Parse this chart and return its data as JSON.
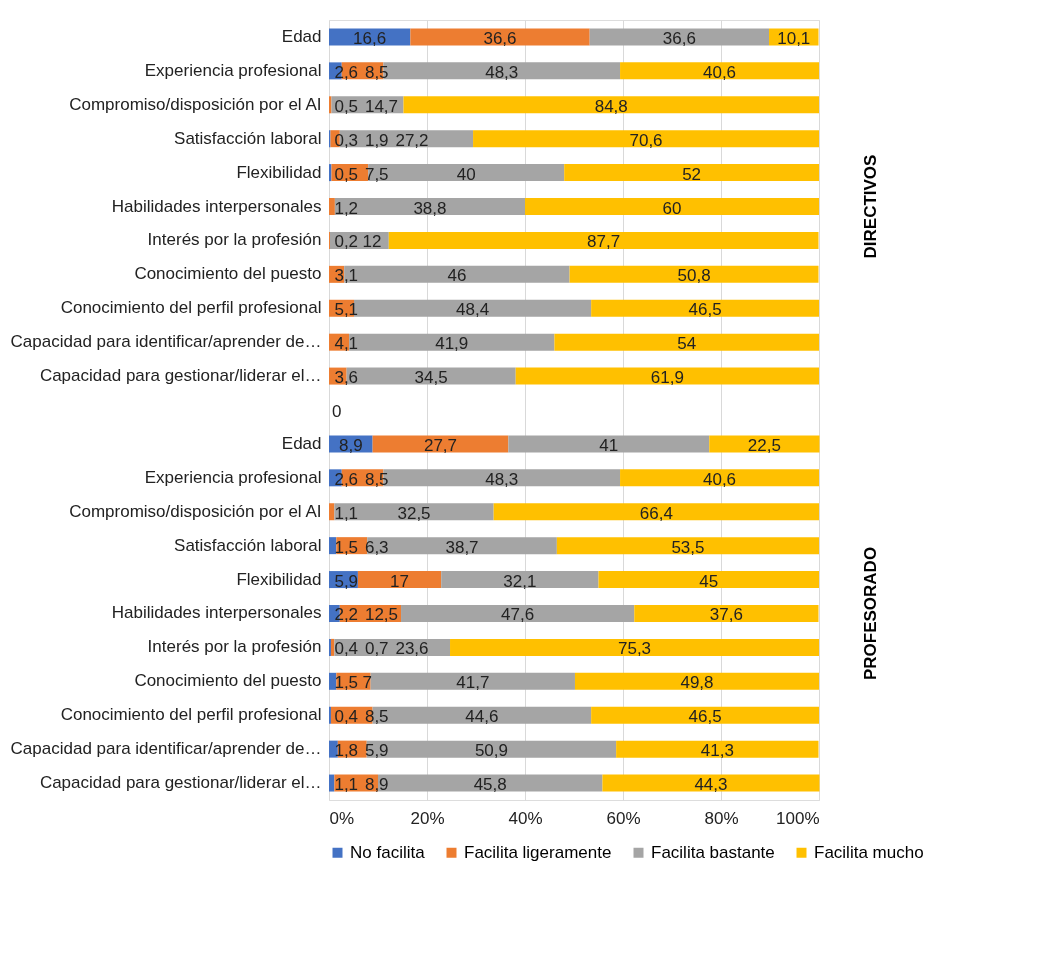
{
  "chart_data": {
    "type": "bar",
    "orientation": "horizontal",
    "stacked": true,
    "categories": [
      "Edad",
      "Experiencia profesional",
      "Compromiso/disposición por el AI",
      "Satisfacción laboral",
      "Flexibilidad",
      "Habilidades interpersonales",
      "Interés por la profesión",
      "Conocimiento del puesto",
      "Conocimiento del perfil profesional",
      "Capacidad para identificar/aprender de…",
      "Capacidad para gestionar/liderar el…",
      null,
      "Edad",
      "Experiencia profesional",
      "Compromiso/disposición por el AI",
      "Satisfacción laboral",
      "Flexibilidad",
      "Habilidades interpersonales",
      "Interés por la profesión",
      "Conocimiento del puesto",
      "Conocimiento del perfil profesional",
      "Capacidad para identificar/aprender de…",
      "Capacidad para gestionar/liderar el…"
    ],
    "series": [
      {
        "name": "No facilita",
        "color": "#4472c4",
        "values": [
          16.6,
          2.6,
          null,
          0.3,
          0.5,
          null,
          null,
          null,
          null,
          null,
          null,
          0,
          8.9,
          2.6,
          null,
          1.5,
          5.9,
          2.2,
          0.4,
          1.5,
          0.4,
          1.8,
          1.1
        ],
        "value_labels": [
          "16,6",
          "2,6",
          null,
          "0,3",
          "0,5",
          null,
          null,
          null,
          null,
          null,
          null,
          "0",
          "8,9",
          "2,6",
          null,
          "1,5",
          "5,9",
          "2,2",
          "0,4",
          "1,5",
          "0,4",
          "1,8",
          "1,1"
        ]
      },
      {
        "name": "Facilita ligeramente",
        "color": "#ed7d31",
        "values": [
          36.6,
          8.5,
          0.5,
          1.9,
          7.5,
          1.2,
          0.2,
          3.1,
          5.1,
          4.1,
          3.6,
          null,
          27.7,
          8.5,
          1.1,
          6.3,
          17,
          12.5,
          0.7,
          7,
          8.5,
          5.9,
          8.9
        ],
        "value_labels": [
          "36,6",
          "8,5",
          "0,5",
          "1,9",
          "7,5",
          "1,2",
          "0,2",
          "3,1",
          "5,1",
          "4,1",
          "3,6",
          null,
          "27,7",
          "8,5",
          "1,1",
          "6,3",
          "17",
          "12,5",
          "0,7",
          "7",
          "8,5",
          "5,9",
          "8,9"
        ]
      },
      {
        "name": "Facilita bastante",
        "color": "#a5a5a5",
        "values": [
          36.6,
          48.3,
          14.7,
          27.2,
          40,
          38.8,
          12,
          46,
          48.4,
          41.9,
          34.5,
          null,
          41,
          48.3,
          32.5,
          38.7,
          32.1,
          47.6,
          23.6,
          41.7,
          44.6,
          50.9,
          45.8
        ],
        "value_labels": [
          "36,6",
          "48,3",
          "14,7",
          "27,2",
          "40",
          "38,8",
          "12",
          "46",
          "48,4",
          "41,9",
          "34,5",
          null,
          "41",
          "48,3",
          "32,5",
          "38,7",
          "32,1",
          "47,6",
          "23,6",
          "41,7",
          "44,6",
          "50,9",
          "45,8"
        ]
      },
      {
        "name": "Facilita mucho",
        "color": "#ffc000",
        "values": [
          10.1,
          40.6,
          84.8,
          70.6,
          52,
          60,
          87.7,
          50.8,
          46.5,
          54,
          61.9,
          null,
          22.5,
          40.6,
          66.4,
          53.5,
          45,
          37.6,
          75.3,
          49.8,
          46.5,
          41.3,
          44.3
        ],
        "value_labels": [
          "10,1",
          "40,6",
          "84,8",
          "70,6",
          "52",
          "60",
          "87,7",
          "50,8",
          "46,5",
          "54",
          "61,9",
          null,
          "22,5",
          "40,6",
          "66,4",
          "53,5",
          "45",
          "37,6",
          "75,3",
          "49,8",
          "46,5",
          "41,3",
          "44,3"
        ]
      }
    ],
    "xlim": [
      0,
      100
    ],
    "xticks": [
      {
        "value": 0,
        "label": "0%"
      },
      {
        "value": 20,
        "label": "20%"
      },
      {
        "value": 40,
        "label": "40%"
      },
      {
        "value": 60,
        "label": "60%"
      },
      {
        "value": 80,
        "label": "80%"
      },
      {
        "value": 100,
        "label": "100%"
      }
    ],
    "grid": "x",
    "legend": "bottom",
    "annotations": [
      "DIRECTIVOS",
      "PROFESORADO"
    ]
  }
}
